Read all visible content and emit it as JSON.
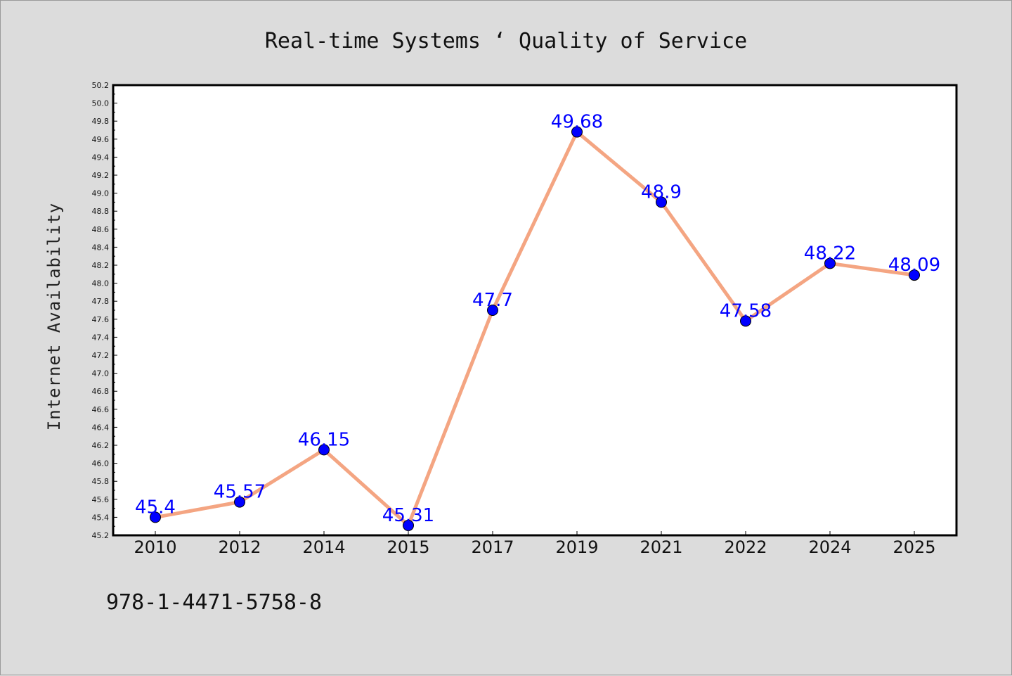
{
  "footer_text": "978-1-4471-5758-8",
  "colors": {
    "background": "#dcdcdc",
    "plot_background": "#ffffff",
    "line": "#f4a582",
    "marker": "#0000ff",
    "data_label": "#0000ff"
  },
  "chart_data": {
    "type": "line",
    "title": "Real-time Systems ‘ Quality of Service",
    "xlabel": "",
    "ylabel": "Internet Availability",
    "categories": [
      "2010",
      "2012",
      "2014",
      "2015",
      "2017",
      "2019",
      "2021",
      "2022",
      "2024",
      "2025"
    ],
    "series": [
      {
        "values": [
          45.4,
          45.57,
          46.15,
          45.31,
          47.7,
          49.68,
          48.9,
          47.58,
          48.22,
          48.09
        ],
        "labels": [
          "45.4",
          "45.57",
          "46.15",
          "45.31",
          "47.7",
          "49.68",
          "48.9",
          "47.58",
          "48.22",
          "48.09"
        ]
      }
    ],
    "ylim": [
      45.2,
      50.2
    ],
    "yticks": [
      "45.2",
      "45.4",
      "45.6",
      "45.8",
      "46.0",
      "46.2",
      "46.4",
      "46.6",
      "46.8",
      "47.0",
      "47.2",
      "47.4",
      "47.6",
      "47.8",
      "48.0",
      "48.2",
      "48.4",
      "48.6",
      "48.8",
      "49.0",
      "49.2",
      "49.4",
      "49.6",
      "49.8",
      "50.0",
      "50.2"
    ],
    "grid": false,
    "marker": "circle"
  }
}
